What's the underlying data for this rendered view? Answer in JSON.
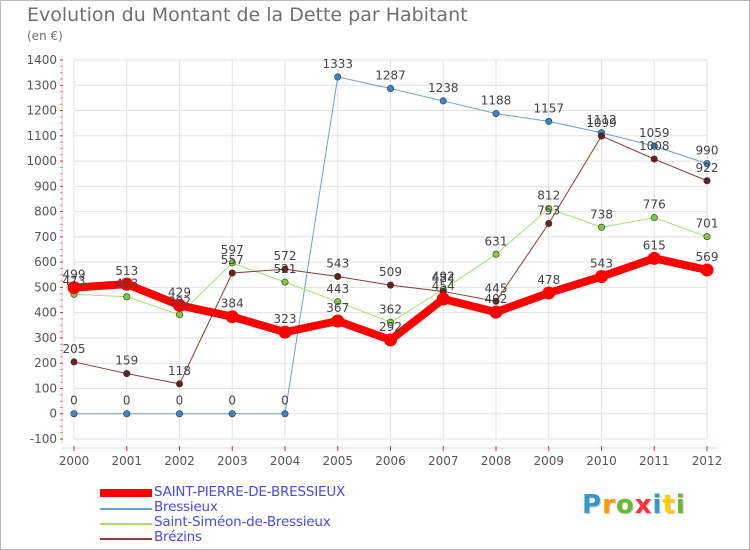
{
  "title": "Evolution du Montant de la Dette par Habitant",
  "subtitle": "(en €)",
  "logo": {
    "text": "Proxiti",
    "letters": [
      {
        "ch": "P",
        "color": "#3399cc"
      },
      {
        "ch": "r",
        "color": "#ff9900"
      },
      {
        "ch": "o",
        "color": "#66bb33"
      },
      {
        "ch": "x",
        "color": "#ff3333"
      },
      {
        "ch": "i",
        "color": "#3399cc"
      },
      {
        "ch": "t",
        "color": "#ffcc00"
      },
      {
        "ch": "i",
        "color": "#66bb33"
      }
    ]
  },
  "chart_data": {
    "type": "line",
    "x": [
      2000,
      2001,
      2002,
      2003,
      2004,
      2005,
      2006,
      2007,
      2008,
      2009,
      2010,
      2011,
      2012
    ],
    "ylim": [
      -100,
      1400
    ],
    "yticks": [
      -100,
      0,
      100,
      200,
      300,
      400,
      500,
      600,
      700,
      800,
      900,
      1000,
      1100,
      1200,
      1300,
      1400
    ],
    "grid": true,
    "legend_position": "bottom-left",
    "series": [
      {
        "name": "Bressieux",
        "color": "#6aa0d0",
        "marker_color": "#3a86c6",
        "width": 1,
        "values": [
          0,
          0,
          0,
          0,
          0,
          1333,
          1287,
          1238,
          1188,
          1157,
          1112,
          1059,
          990
        ]
      },
      {
        "name": "Saint-Siméon-de-Bressieux",
        "color": "#a8e070",
        "marker_color": "#7ccc3c",
        "width": 1,
        "values": [
          473,
          463,
          392,
          597,
          521,
          443,
          362,
          492,
          631,
          812,
          738,
          776,
          701
        ]
      },
      {
        "name": "Brézins",
        "color": "#8a3a3a",
        "marker_color": "#6e1e1e",
        "width": 1,
        "values": [
          205,
          159,
          118,
          557,
          572,
          543,
          509,
          484,
          445,
          753,
          1099,
          1008,
          922
        ]
      },
      {
        "name": "SAINT-PIERRE-DE-BRESSIEUX",
        "color": "#ff0000",
        "marker_color": "#ff0000",
        "width": 8,
        "values": [
          499,
          513,
          429,
          384,
          323,
          367,
          292,
          454,
          402,
          478,
          543,
          615,
          569
        ]
      }
    ],
    "labels": [
      {
        "series": "Bressieux",
        "values": [
          "0",
          "0",
          "0",
          "0",
          "0",
          "1333",
          "1287",
          "1238",
          "1188",
          "1157",
          "1112",
          "1059",
          "990"
        ]
      },
      {
        "series": "Saint-Siméon-de-Bressieux",
        "values": [
          "473",
          "463",
          "392",
          "597",
          "521",
          "443",
          "362",
          "492",
          "631",
          "812",
          "738",
          "776",
          "701"
        ]
      },
      {
        "series": "Brézins",
        "values": [
          "205",
          "159",
          "118",
          "557",
          "572",
          "543",
          "509",
          "484",
          "445",
          "753",
          "1099",
          "1008",
          "922"
        ]
      },
      {
        "series": "SAINT-PIERRE-DE-BRESSIEUX",
        "values": [
          "499",
          "513",
          "429",
          "384",
          "323",
          "367",
          "292",
          "454",
          "402",
          "478",
          "543",
          "615",
          "569"
        ]
      }
    ]
  },
  "legend": [
    {
      "name": "SAINT-PIERRE-DE-BRESSIEUX",
      "color": "#ff0000",
      "thick": true
    },
    {
      "name": "Bressieux",
      "color": "#6aa0d0",
      "thick": false
    },
    {
      "name": "Saint-Siméon-de-Bressieux",
      "color": "#a8e070",
      "thick": false
    },
    {
      "name": "Brézins",
      "color": "#8a3a3a",
      "thick": false
    }
  ]
}
